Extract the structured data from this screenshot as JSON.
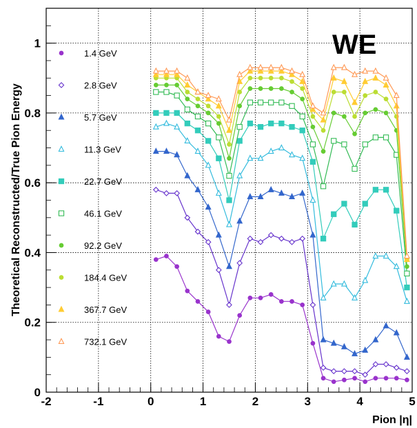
{
  "chart_data": {
    "type": "line",
    "title": "",
    "corner_label": "WE",
    "xlabel": "Pion |η|",
    "ylabel": "Theoretical Reconstructed/True Pion Energy",
    "xlim": [
      -2,
      5
    ],
    "ylim": [
      0,
      1.1
    ],
    "xticks": [
      -2,
      -1,
      0,
      1,
      2,
      3,
      4,
      5
    ],
    "yticks": [
      0,
      0.2,
      0.4,
      0.6,
      0.8,
      1
    ],
    "xtick_labels": [
      "-2",
      "-1",
      "0",
      "1",
      "2",
      "3",
      "4",
      "5"
    ],
    "ytick_labels": [
      "0",
      "0.2",
      "0.4",
      "0.6",
      "0.8",
      "1"
    ],
    "grid": true,
    "legend_position": "left",
    "x": [
      0.1,
      0.3,
      0.5,
      0.7,
      0.9,
      1.1,
      1.3,
      1.5,
      1.7,
      1.9,
      2.1,
      2.3,
      2.5,
      2.7,
      2.9,
      3.1,
      3.3,
      3.5,
      3.7,
      3.9,
      4.1,
      4.3,
      4.5,
      4.7,
      4.9
    ],
    "series": [
      {
        "name": "1.4 GeV",
        "color": "#9933cc",
        "marker": "dot",
        "values": [
          0.38,
          0.39,
          0.36,
          0.29,
          0.26,
          0.23,
          0.16,
          0.145,
          0.22,
          0.27,
          0.27,
          0.28,
          0.26,
          0.26,
          0.25,
          0.14,
          0.04,
          0.03,
          0.035,
          0.04,
          0.03,
          0.04,
          0.04,
          0.04,
          0.035
        ]
      },
      {
        "name": "2.8 GeV",
        "color": "#6633cc",
        "marker": "open-diamond",
        "values": [
          0.58,
          0.57,
          0.57,
          0.5,
          0.46,
          0.43,
          0.35,
          0.25,
          0.37,
          0.44,
          0.43,
          0.45,
          0.44,
          0.43,
          0.44,
          0.25,
          0.07,
          0.06,
          0.06,
          0.06,
          0.05,
          0.08,
          0.08,
          0.07,
          0.06
        ]
      },
      {
        "name": "5.7 GeV",
        "color": "#3366cc",
        "marker": "triangle",
        "values": [
          0.69,
          0.69,
          0.68,
          0.62,
          0.58,
          0.53,
          0.45,
          0.36,
          0.49,
          0.56,
          0.56,
          0.58,
          0.57,
          0.56,
          0.57,
          0.45,
          0.15,
          0.14,
          0.13,
          0.11,
          0.12,
          0.15,
          0.19,
          0.17,
          0.1
        ]
      },
      {
        "name": "11.3 GeV",
        "color": "#33bbdd",
        "marker": "open-triangle",
        "values": [
          0.76,
          0.77,
          0.76,
          0.72,
          0.69,
          0.65,
          0.57,
          0.48,
          0.62,
          0.67,
          0.67,
          0.69,
          0.7,
          0.68,
          0.67,
          0.55,
          0.27,
          0.31,
          0.31,
          0.27,
          0.32,
          0.39,
          0.39,
          0.36,
          0.26
        ]
      },
      {
        "name": "22.7 GeV",
        "color": "#33ccbb",
        "marker": "square",
        "values": [
          0.8,
          0.8,
          0.8,
          0.77,
          0.75,
          0.72,
          0.67,
          0.55,
          0.72,
          0.77,
          0.76,
          0.77,
          0.77,
          0.76,
          0.75,
          0.66,
          0.44,
          0.51,
          0.54,
          0.48,
          0.54,
          0.58,
          0.58,
          0.52,
          0.3
        ]
      },
      {
        "name": "46.1 GeV",
        "color": "#33bb55",
        "marker": "open-square",
        "values": [
          0.86,
          0.86,
          0.85,
          0.81,
          0.79,
          0.77,
          0.73,
          0.62,
          0.76,
          0.83,
          0.83,
          0.83,
          0.83,
          0.82,
          0.79,
          0.71,
          0.59,
          0.72,
          0.71,
          0.64,
          0.71,
          0.73,
          0.73,
          0.68,
          0.34
        ]
      },
      {
        "name": "92.2 GeV",
        "color": "#66cc33",
        "marker": "dot",
        "values": [
          0.88,
          0.88,
          0.88,
          0.84,
          0.82,
          0.8,
          0.77,
          0.67,
          0.82,
          0.87,
          0.87,
          0.87,
          0.87,
          0.86,
          0.84,
          0.76,
          0.69,
          0.8,
          0.79,
          0.74,
          0.8,
          0.81,
          0.8,
          0.75,
          0.36
        ]
      },
      {
        "name": "184.4 GeV",
        "color": "#bbdd33",
        "marker": "dot",
        "values": [
          0.9,
          0.9,
          0.9,
          0.86,
          0.84,
          0.82,
          0.79,
          0.71,
          0.86,
          0.9,
          0.9,
          0.9,
          0.9,
          0.89,
          0.87,
          0.79,
          0.75,
          0.86,
          0.86,
          0.79,
          0.85,
          0.86,
          0.84,
          0.79,
          0.38
        ]
      },
      {
        "name": "367.7 GeV",
        "color": "#ffcc33",
        "marker": "triangle",
        "values": [
          0.91,
          0.91,
          0.91,
          0.88,
          0.86,
          0.84,
          0.82,
          0.75,
          0.89,
          0.92,
          0.92,
          0.92,
          0.92,
          0.91,
          0.89,
          0.81,
          0.78,
          0.9,
          0.89,
          0.83,
          0.89,
          0.9,
          0.88,
          0.82,
          0.38
        ]
      },
      {
        "name": "732.1 GeV",
        "color": "#ff9955",
        "marker": "open-triangle",
        "values": [
          0.92,
          0.92,
          0.92,
          0.9,
          0.86,
          0.85,
          0.84,
          0.78,
          0.91,
          0.93,
          0.93,
          0.93,
          0.93,
          0.92,
          0.91,
          0.82,
          0.8,
          0.93,
          0.93,
          0.91,
          0.92,
          0.92,
          0.9,
          0.85,
          0.39
        ]
      }
    ]
  }
}
